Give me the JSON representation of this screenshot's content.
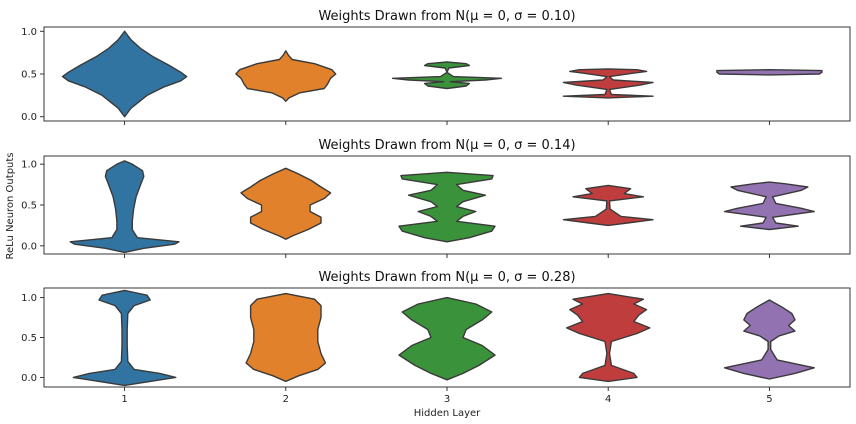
{
  "chart_data": {
    "type": "violin",
    "xlabel": "Hidden Layer",
    "ylabel": "ReLu Neuron Outputs",
    "categories": [
      "1",
      "2",
      "3",
      "4",
      "5"
    ],
    "colors": [
      "#3274a1",
      "#e1812c",
      "#3a923a",
      "#c03d3e",
      "#9372b2"
    ],
    "sharex": true,
    "panels": [
      {
        "title": "Weights Drawn from N(μ = 0, σ = 0.10)",
        "ylim": [
          -0.05,
          1.05
        ],
        "yticks": [
          "0.0",
          "0.5",
          "1.0"
        ],
        "violins": [
          {
            "category": "1",
            "min": 0.0,
            "max": 1.0,
            "profile": [
              [
                0.0,
                0.0
              ],
              [
                0.1,
                0.1
              ],
              [
                0.25,
                0.35
              ],
              [
                0.35,
                0.62
              ],
              [
                0.42,
                0.88
              ],
              [
                0.47,
                0.97
              ],
              [
                0.52,
                0.88
              ],
              [
                0.6,
                0.7
              ],
              [
                0.7,
                0.45
              ],
              [
                0.8,
                0.25
              ],
              [
                0.9,
                0.1
              ],
              [
                1.0,
                0.0
              ]
            ]
          },
          {
            "category": "2",
            "min": 0.18,
            "max": 0.77,
            "profile": [
              [
                0.18,
                0.0
              ],
              [
                0.22,
                0.05
              ],
              [
                0.28,
                0.22
              ],
              [
                0.33,
                0.6
              ],
              [
                0.38,
                0.65
              ],
              [
                0.45,
                0.7
              ],
              [
                0.5,
                0.78
              ],
              [
                0.55,
                0.72
              ],
              [
                0.62,
                0.45
              ],
              [
                0.67,
                0.1
              ],
              [
                0.72,
                0.04
              ],
              [
                0.77,
                0.0
              ]
            ]
          },
          {
            "category": "3",
            "min": 0.33,
            "max": 0.64,
            "profile": [
              [
                0.33,
                0.0
              ],
              [
                0.36,
                0.3
              ],
              [
                0.39,
                0.35
              ],
              [
                0.41,
                0.05
              ],
              [
                0.43,
                0.6
              ],
              [
                0.45,
                0.85
              ],
              [
                0.47,
                0.1
              ],
              [
                0.52,
                0.0
              ],
              [
                0.57,
                0.03
              ],
              [
                0.6,
                0.35
              ],
              [
                0.62,
                0.3
              ],
              [
                0.64,
                0.0
              ]
            ]
          },
          {
            "category": "4",
            "min": 0.22,
            "max": 0.56,
            "profile": [
              [
                0.22,
                0.0
              ],
              [
                0.24,
                0.7
              ],
              [
                0.26,
                0.05
              ],
              [
                0.32,
                0.02
              ],
              [
                0.37,
                0.5
              ],
              [
                0.4,
                0.7
              ],
              [
                0.43,
                0.08
              ],
              [
                0.47,
                0.02
              ],
              [
                0.51,
                0.4
              ],
              [
                0.53,
                0.6
              ],
              [
                0.55,
                0.45
              ],
              [
                0.56,
                0.0
              ]
            ]
          },
          {
            "category": "5",
            "min": 0.49,
            "max": 0.55,
            "profile": [
              [
                0.49,
                0.0
              ],
              [
                0.5,
                0.78
              ],
              [
                0.52,
                0.82
              ],
              [
                0.54,
                0.82
              ],
              [
                0.55,
                0.0
              ]
            ]
          }
        ]
      },
      {
        "title": "Weights Drawn from N(μ = 0, σ = 0.14)",
        "ylim": [
          -0.1,
          1.1
        ],
        "yticks": [
          "0.0",
          "0.5",
          "1.0"
        ],
        "violins": [
          {
            "category": "1",
            "min": -0.08,
            "max": 1.04,
            "profile": [
              [
                -0.08,
                0.0
              ],
              [
                -0.03,
                0.3
              ],
              [
                0.02,
                0.78
              ],
              [
                0.05,
                0.85
              ],
              [
                0.1,
                0.2
              ],
              [
                0.2,
                0.12
              ],
              [
                0.3,
                0.12
              ],
              [
                0.45,
                0.14
              ],
              [
                0.6,
                0.18
              ],
              [
                0.75,
                0.25
              ],
              [
                0.85,
                0.3
              ],
              [
                0.92,
                0.28
              ],
              [
                1.0,
                0.12
              ],
              [
                1.04,
                0.0
              ]
            ]
          },
          {
            "category": "2",
            "min": 0.08,
            "max": 0.95,
            "profile": [
              [
                0.08,
                0.0
              ],
              [
                0.12,
                0.1
              ],
              [
                0.2,
                0.35
              ],
              [
                0.28,
                0.55
              ],
              [
                0.35,
                0.55
              ],
              [
                0.42,
                0.38
              ],
              [
                0.5,
                0.38
              ],
              [
                0.58,
                0.6
              ],
              [
                0.65,
                0.7
              ],
              [
                0.72,
                0.55
              ],
              [
                0.8,
                0.4
              ],
              [
                0.88,
                0.2
              ],
              [
                0.95,
                0.0
              ]
            ]
          },
          {
            "category": "3",
            "min": 0.05,
            "max": 0.9,
            "profile": [
              [
                0.05,
                0.0
              ],
              [
                0.1,
                0.35
              ],
              [
                0.18,
                0.7
              ],
              [
                0.24,
                0.75
              ],
              [
                0.3,
                0.15
              ],
              [
                0.36,
                0.25
              ],
              [
                0.42,
                0.45
              ],
              [
                0.48,
                0.15
              ],
              [
                0.54,
                0.25
              ],
              [
                0.62,
                0.6
              ],
              [
                0.68,
                0.25
              ],
              [
                0.75,
                0.15
              ],
              [
                0.82,
                0.7
              ],
              [
                0.86,
                0.72
              ],
              [
                0.9,
                0.0
              ]
            ]
          },
          {
            "category": "4",
            "min": 0.25,
            "max": 0.74,
            "profile": [
              [
                0.25,
                0.0
              ],
              [
                0.28,
                0.3
              ],
              [
                0.32,
                0.7
              ],
              [
                0.36,
                0.2
              ],
              [
                0.45,
                0.03
              ],
              [
                0.55,
                0.02
              ],
              [
                0.6,
                0.55
              ],
              [
                0.64,
                0.25
              ],
              [
                0.7,
                0.35
              ],
              [
                0.74,
                0.0
              ]
            ]
          },
          {
            "category": "5",
            "min": 0.2,
            "max": 0.78,
            "profile": [
              [
                0.2,
                0.0
              ],
              [
                0.24,
                0.45
              ],
              [
                0.28,
                0.1
              ],
              [
                0.35,
                0.05
              ],
              [
                0.42,
                0.7
              ],
              [
                0.46,
                0.5
              ],
              [
                0.52,
                0.1
              ],
              [
                0.6,
                0.05
              ],
              [
                0.68,
                0.5
              ],
              [
                0.72,
                0.6
              ],
              [
                0.76,
                0.25
              ],
              [
                0.78,
                0.0
              ]
            ]
          }
        ]
      },
      {
        "title": "Weights Drawn from N(μ = 0, σ = 0.28)",
        "ylim": [
          -0.12,
          1.12
        ],
        "yticks": [
          "0.0",
          "0.5",
          "1.0"
        ],
        "violins": [
          {
            "category": "1",
            "min": -0.1,
            "max": 1.09,
            "profile": [
              [
                -0.1,
                0.0
              ],
              [
                -0.05,
                0.4
              ],
              [
                0.0,
                0.8
              ],
              [
                0.05,
                0.55
              ],
              [
                0.1,
                0.15
              ],
              [
                0.2,
                0.05
              ],
              [
                0.4,
                0.04
              ],
              [
                0.6,
                0.04
              ],
              [
                0.8,
                0.05
              ],
              [
                0.9,
                0.15
              ],
              [
                0.97,
                0.4
              ],
              [
                1.03,
                0.35
              ],
              [
                1.09,
                0.0
              ]
            ]
          },
          {
            "category": "2",
            "min": -0.05,
            "max": 1.05,
            "profile": [
              [
                -0.05,
                0.0
              ],
              [
                0.02,
                0.2
              ],
              [
                0.1,
                0.5
              ],
              [
                0.18,
                0.62
              ],
              [
                0.3,
                0.55
              ],
              [
                0.45,
                0.5
              ],
              [
                0.6,
                0.5
              ],
              [
                0.75,
                0.55
              ],
              [
                0.9,
                0.55
              ],
              [
                0.98,
                0.45
              ],
              [
                1.05,
                0.0
              ]
            ]
          },
          {
            "category": "3",
            "min": -0.03,
            "max": 1.0,
            "profile": [
              [
                -0.03,
                0.0
              ],
              [
                0.05,
                0.25
              ],
              [
                0.15,
                0.5
              ],
              [
                0.28,
                0.75
              ],
              [
                0.4,
                0.55
              ],
              [
                0.5,
                0.25
              ],
              [
                0.6,
                0.3
              ],
              [
                0.72,
                0.55
              ],
              [
                0.82,
                0.7
              ],
              [
                0.92,
                0.45
              ],
              [
                1.0,
                0.0
              ]
            ]
          },
          {
            "category": "4",
            "min": -0.05,
            "max": 1.05,
            "profile": [
              [
                -0.05,
                0.0
              ],
              [
                0.0,
                0.45
              ],
              [
                0.05,
                0.4
              ],
              [
                0.15,
                0.05
              ],
              [
                0.3,
                0.02
              ],
              [
                0.45,
                0.05
              ],
              [
                0.55,
                0.45
              ],
              [
                0.62,
                0.65
              ],
              [
                0.7,
                0.4
              ],
              [
                0.78,
                0.48
              ],
              [
                0.85,
                0.6
              ],
              [
                0.92,
                0.4
              ],
              [
                0.98,
                0.55
              ],
              [
                1.05,
                0.0
              ]
            ]
          },
          {
            "category": "5",
            "min": -0.02,
            "max": 0.97,
            "profile": [
              [
                -0.02,
                0.0
              ],
              [
                0.05,
                0.4
              ],
              [
                0.12,
                0.7
              ],
              [
                0.22,
                0.12
              ],
              [
                0.35,
                0.02
              ],
              [
                0.45,
                0.02
              ],
              [
                0.52,
                0.15
              ],
              [
                0.58,
                0.4
              ],
              [
                0.65,
                0.3
              ],
              [
                0.72,
                0.4
              ],
              [
                0.8,
                0.35
              ],
              [
                0.88,
                0.2
              ],
              [
                0.97,
                0.0
              ]
            ]
          }
        ]
      }
    ]
  }
}
